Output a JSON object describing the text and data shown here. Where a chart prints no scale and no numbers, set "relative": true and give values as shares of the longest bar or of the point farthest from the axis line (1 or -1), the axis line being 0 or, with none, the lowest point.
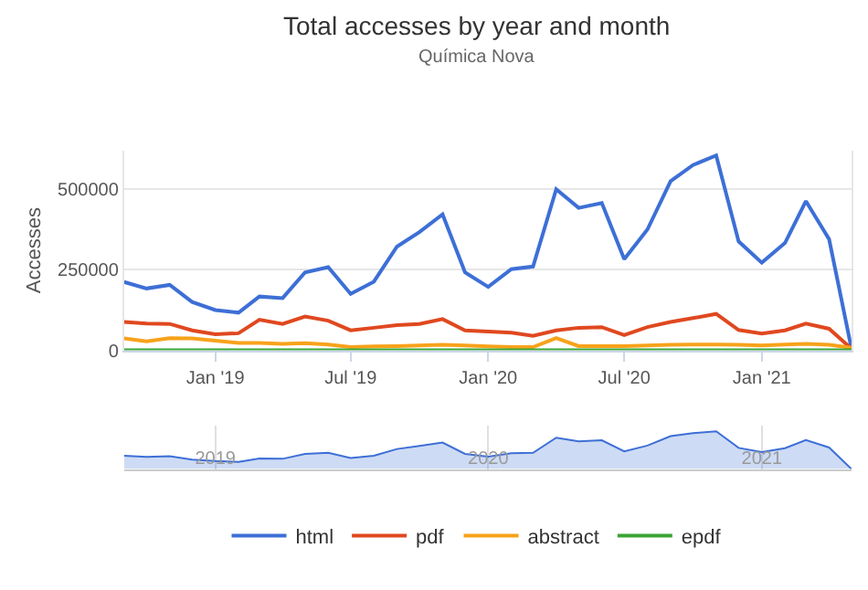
{
  "chart_data": [
    {
      "type": "line",
      "title": "Total accesses by year and month",
      "subtitle": "Química Nova",
      "ylabel": "Accesses",
      "x": [
        "2018-09",
        "2018-10",
        "2018-11",
        "2018-12",
        "2019-01",
        "2019-02",
        "2019-03",
        "2019-04",
        "2019-05",
        "2019-06",
        "2019-07",
        "2019-08",
        "2019-09",
        "2019-10",
        "2019-11",
        "2019-12",
        "2020-01",
        "2020-02",
        "2020-03",
        "2020-04",
        "2020-05",
        "2020-06",
        "2020-07",
        "2020-08",
        "2020-09",
        "2020-10",
        "2020-11",
        "2020-12",
        "2021-01",
        "2021-02",
        "2021-03",
        "2021-04",
        "2021-05"
      ],
      "xlim": [
        "2018-09",
        "2021-05"
      ],
      "xticks": [
        {
          "value": "2019-01",
          "label": "Jan '19"
        },
        {
          "value": "2019-07",
          "label": "Jul '19"
        },
        {
          "value": "2020-01",
          "label": "Jan '20"
        },
        {
          "value": "2020-07",
          "label": "Jul '20"
        },
        {
          "value": "2021-01",
          "label": "Jan '21"
        }
      ],
      "ylim": [
        0,
        620000
      ],
      "yticks": [
        0,
        250000,
        500000
      ],
      "grid": "y",
      "legend": "bottom",
      "marker": "none",
      "line_style": "solid",
      "series": [
        {
          "name": "html",
          "color": "#3d6fd6",
          "values": [
            212000,
            192000,
            203000,
            150000,
            125000,
            117000,
            167000,
            162000,
            242000,
            258000,
            175000,
            213000,
            322000,
            367000,
            422000,
            242000,
            197000,
            252000,
            260000,
            500000,
            442000,
            457000,
            283000,
            375000,
            525000,
            575000,
            605000,
            338000,
            272000,
            333000,
            463000,
            345000,
            5000
          ]
        },
        {
          "name": "pdf",
          "color": "#e0481f",
          "values": [
            88000,
            83000,
            82000,
            62000,
            50000,
            53000,
            95000,
            82000,
            105000,
            92000,
            62000,
            70000,
            78000,
            82000,
            97000,
            62000,
            58000,
            55000,
            45000,
            62000,
            70000,
            72000,
            47000,
            72000,
            88000,
            100000,
            113000,
            63000,
            52000,
            62000,
            83000,
            67000,
            5000
          ]
        },
        {
          "name": "abstract",
          "color": "#f7a21b",
          "values": [
            37000,
            28000,
            38000,
            37000,
            30000,
            23000,
            23000,
            20000,
            22000,
            18000,
            10000,
            12000,
            13000,
            15000,
            17000,
            15000,
            12000,
            10000,
            10000,
            38000,
            13000,
            13000,
            13000,
            15000,
            17000,
            18000,
            18000,
            17000,
            15000,
            18000,
            20000,
            17000,
            8000
          ]
        },
        {
          "name": "epdf",
          "color": "#3aa535",
          "values": [
            0,
            0,
            0,
            0,
            0,
            0,
            0,
            0,
            0,
            0,
            0,
            0,
            0,
            0,
            0,
            0,
            0,
            0,
            0,
            0,
            0,
            0,
            0,
            0,
            0,
            0,
            0,
            0,
            0,
            0,
            0,
            0,
            0
          ]
        }
      ]
    },
    {
      "type": "area",
      "relative": true,
      "tick_labels": "x",
      "grid": "x",
      "x": [
        "2018-09",
        "2018-10",
        "2018-11",
        "2018-12",
        "2019-01",
        "2019-02",
        "2019-03",
        "2019-04",
        "2019-05",
        "2019-06",
        "2019-07",
        "2019-08",
        "2019-09",
        "2019-10",
        "2019-11",
        "2019-12",
        "2020-01",
        "2020-02",
        "2020-03",
        "2020-04",
        "2020-05",
        "2020-06",
        "2020-07",
        "2020-08",
        "2020-09",
        "2020-10",
        "2020-11",
        "2020-12",
        "2021-01",
        "2021-02",
        "2021-03",
        "2021-04",
        "2021-05"
      ],
      "xlim": [
        "2018-09",
        "2021-05"
      ],
      "xticks": [
        {
          "value": "2019-01",
          "label": "2019"
        },
        {
          "value": "2020-01",
          "label": "2020"
        },
        {
          "value": "2021-01",
          "label": "2021"
        }
      ],
      "series": [
        {
          "color": "#3d6fd6",
          "values": [
            0.35,
            0.32,
            0.34,
            0.25,
            0.21,
            0.19,
            0.28,
            0.27,
            0.4,
            0.43,
            0.29,
            0.35,
            0.53,
            0.61,
            0.7,
            0.4,
            0.33,
            0.42,
            0.43,
            0.83,
            0.73,
            0.76,
            0.47,
            0.62,
            0.87,
            0.95,
            1,
            0.56,
            0.45,
            0.55,
            0.77,
            0.57,
            0
          ]
        }
      ]
    }
  ]
}
